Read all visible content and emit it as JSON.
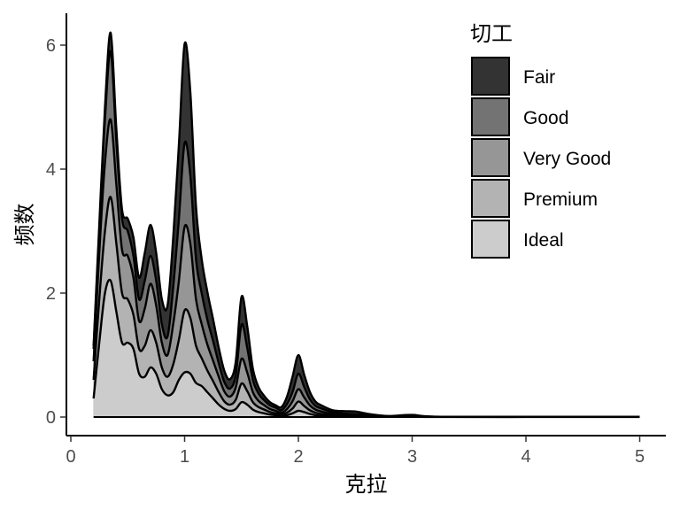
{
  "chart_data": {
    "type": "area",
    "stacked": true,
    "xlabel": "克拉",
    "ylabel": "频数",
    "legend_title": "切工",
    "legend_position": "top-right",
    "xlim": [
      0,
      5
    ],
    "ylim": [
      0,
      6.5
    ],
    "x_ticks": [
      0,
      1,
      2,
      3,
      4,
      5
    ],
    "y_ticks": [
      0,
      2,
      4,
      6
    ],
    "grid": false,
    "x": [
      0.2,
      0.25,
      0.3,
      0.35,
      0.4,
      0.45,
      0.5,
      0.55,
      0.6,
      0.65,
      0.7,
      0.75,
      0.8,
      0.85,
      0.9,
      0.95,
      1.0,
      1.05,
      1.1,
      1.15,
      1.2,
      1.25,
      1.3,
      1.35,
      1.4,
      1.45,
      1.5,
      1.55,
      1.6,
      1.65,
      1.7,
      1.75,
      1.8,
      1.85,
      1.9,
      1.95,
      2.0,
      2.05,
      2.1,
      2.15,
      2.2,
      2.3,
      2.4,
      2.5,
      2.6,
      2.7,
      2.8,
      3.0,
      3.2,
      4.0,
      5.0
    ],
    "series": [
      {
        "name": "Ideal",
        "color": "#cccccc",
        "values": [
          0.3,
          1.2,
          2.0,
          2.2,
          1.7,
          1.2,
          1.2,
          1.1,
          0.7,
          0.65,
          0.8,
          0.7,
          0.45,
          0.35,
          0.4,
          0.6,
          0.72,
          0.7,
          0.55,
          0.5,
          0.4,
          0.3,
          0.2,
          0.13,
          0.1,
          0.13,
          0.24,
          0.2,
          0.12,
          0.08,
          0.06,
          0.04,
          0.03,
          0.02,
          0.03,
          0.06,
          0.1,
          0.08,
          0.05,
          0.03,
          0.02,
          0.01,
          0.01,
          0.01,
          0.005,
          0.005,
          0.003,
          0.003,
          0.001,
          0.001,
          0.001
        ]
      },
      {
        "name": "Premium",
        "color": "#b3b3b3",
        "values": [
          0.3,
          0.7,
          1.0,
          1.35,
          1.1,
          0.8,
          0.7,
          0.55,
          0.4,
          0.5,
          0.6,
          0.5,
          0.35,
          0.3,
          0.45,
          0.65,
          1.0,
          0.9,
          0.6,
          0.45,
          0.35,
          0.28,
          0.2,
          0.12,
          0.1,
          0.15,
          0.3,
          0.22,
          0.12,
          0.08,
          0.06,
          0.04,
          0.03,
          0.02,
          0.04,
          0.08,
          0.15,
          0.1,
          0.06,
          0.04,
          0.03,
          0.02,
          0.01,
          0.01,
          0.01,
          0.005,
          0.003,
          0.003,
          0.001,
          0.001,
          0.001
        ]
      },
      {
        "name": "Very Good",
        "color": "#969696",
        "values": [
          0.3,
          0.75,
          1.1,
          1.25,
          0.95,
          0.7,
          0.7,
          0.6,
          0.45,
          0.6,
          0.75,
          0.6,
          0.4,
          0.35,
          0.65,
          0.95,
          1.35,
          1.2,
          0.75,
          0.55,
          0.42,
          0.33,
          0.25,
          0.16,
          0.13,
          0.2,
          0.4,
          0.3,
          0.16,
          0.1,
          0.07,
          0.05,
          0.04,
          0.03,
          0.06,
          0.12,
          0.2,
          0.14,
          0.08,
          0.05,
          0.04,
          0.02,
          0.015,
          0.01,
          0.01,
          0.005,
          0.003,
          0.004,
          0.001,
          0.001,
          0.001
        ]
      },
      {
        "name": "Good",
        "color": "#737373",
        "values": [
          0.2,
          0.35,
          0.7,
          1.1,
          0.7,
          0.5,
          0.4,
          0.35,
          0.35,
          0.45,
          0.45,
          0.4,
          0.3,
          0.3,
          0.6,
          1.0,
          1.35,
          1.1,
          0.65,
          0.5,
          0.4,
          0.32,
          0.22,
          0.15,
          0.13,
          0.2,
          0.55,
          0.4,
          0.2,
          0.12,
          0.08,
          0.06,
          0.05,
          0.04,
          0.08,
          0.15,
          0.25,
          0.17,
          0.1,
          0.06,
          0.05,
          0.03,
          0.02,
          0.015,
          0.01,
          0.005,
          0.003,
          0.004,
          0.001,
          0.001,
          0.001
        ]
      },
      {
        "name": "Fair",
        "color": "#333333",
        "values": [
          0.05,
          0.1,
          0.2,
          0.3,
          0.2,
          0.15,
          0.2,
          0.3,
          0.35,
          0.45,
          0.5,
          0.45,
          0.4,
          0.5,
          0.8,
          1.2,
          1.6,
          1.35,
          0.85,
          0.55,
          0.45,
          0.35,
          0.25,
          0.18,
          0.15,
          0.22,
          0.45,
          0.35,
          0.18,
          0.1,
          0.07,
          0.05,
          0.04,
          0.05,
          0.12,
          0.25,
          0.3,
          0.2,
          0.12,
          0.07,
          0.05,
          0.03,
          0.04,
          0.045,
          0.02,
          0.01,
          0.005,
          0.02,
          0.002,
          0.001,
          0.001
        ]
      }
    ]
  }
}
